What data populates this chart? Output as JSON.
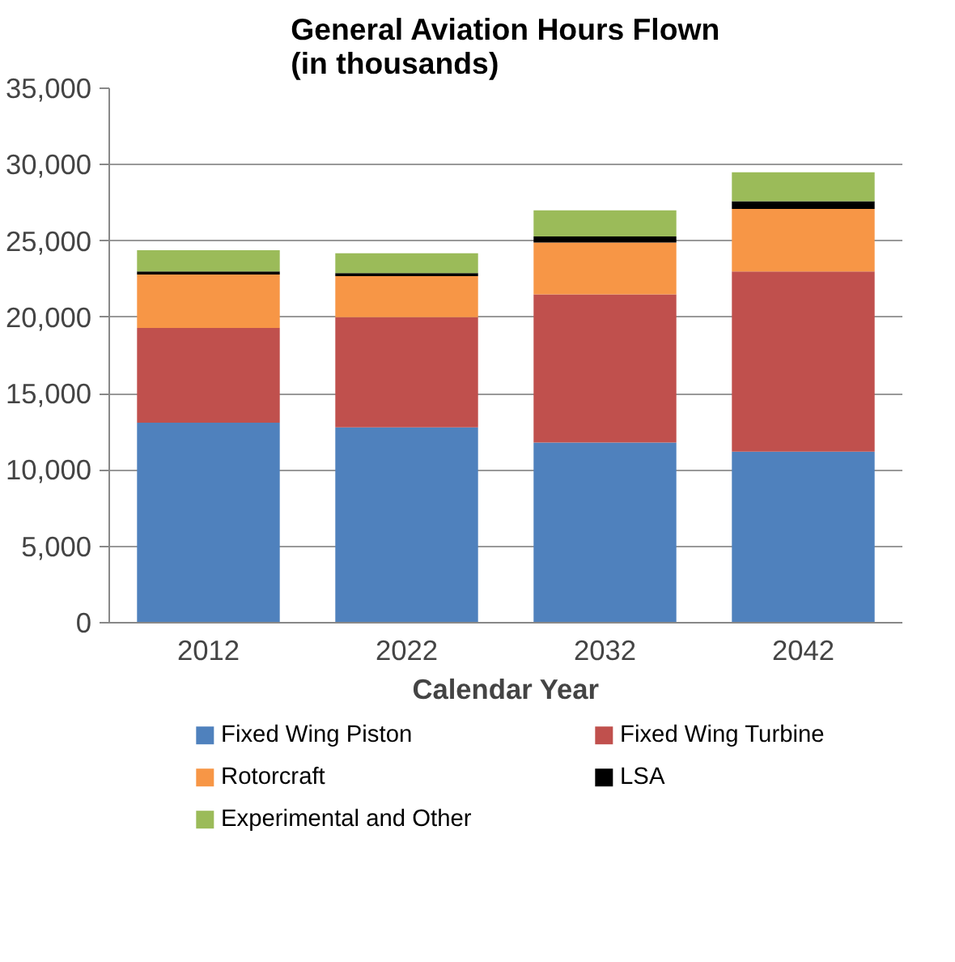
{
  "chart_data": {
    "type": "bar",
    "title": "General Aviation Hours Flown\n(in thousands)",
    "xlabel": "Calendar Year",
    "categories": [
      "2012",
      "2022",
      "2032",
      "2042"
    ],
    "stacked": true,
    "series": [
      {
        "name": "Fixed Wing Piston",
        "color": "#4f81bd",
        "values": [
          13100,
          12800,
          11800,
          11200
        ]
      },
      {
        "name": "Fixed Wing Turbine",
        "color": "#c0504d",
        "values": [
          6200,
          7200,
          9700,
          11800
        ]
      },
      {
        "name": "Rotorcraft",
        "color": "#f79646",
        "values": [
          3500,
          2700,
          3400,
          4100
        ]
      },
      {
        "name": "LSA",
        "color": "#000000",
        "values": [
          200,
          200,
          400,
          500
        ]
      },
      {
        "name": "Experimental and Other",
        "color": "#9bbb59",
        "values": [
          1400,
          1300,
          1700,
          1900
        ]
      }
    ],
    "ylim": [
      0,
      35000
    ],
    "yticks": [
      0,
      {
        "value": 5000,
        "label": "5,000"
      },
      {
        "value": 10000,
        "label": "10,000"
      },
      {
        "value": 15000,
        "label": "15,000"
      },
      {
        "value": 20000,
        "label": "20,000"
      },
      {
        "value": 25000,
        "label": "25,000"
      },
      {
        "value": 30000,
        "label": "30,000"
      },
      {
        "value": 35000,
        "label": "35,000"
      }
    ],
    "grid": "y",
    "legend": "bottom"
  }
}
